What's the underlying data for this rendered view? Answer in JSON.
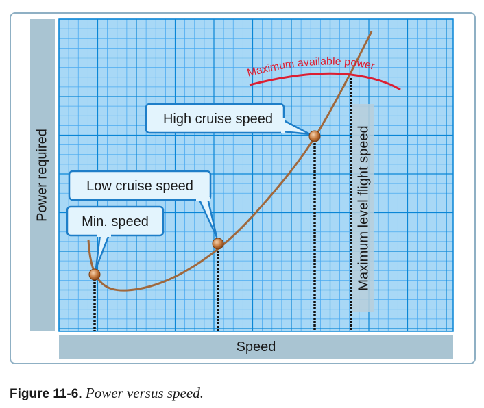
{
  "chart_data": {
    "type": "line",
    "xlabel": "Speed",
    "ylabel": "Power required",
    "grid": true,
    "series": [
      {
        "name": "",
        "points": []
      },
      {
        "name": "Maximum available power",
        "points": []
      }
    ],
    "annotations": [
      {
        "label": "Min. speed"
      },
      {
        "label": "Low cruise speed"
      },
      {
        "label": "High cruise speed"
      },
      {
        "label": "Maximum level flight speed"
      }
    ]
  },
  "colors": {
    "grid_background": "#a8d8f6",
    "grid_line": "#0a86d6",
    "power_required_curve": "#a0683c",
    "power_available_curve": "#dc1e32",
    "callout_fill": "#e3f4fd",
    "callout_border": "#1e7ec8",
    "label_bar": "#a9c4d2"
  },
  "caption": {
    "label": "Figure 11-6.",
    "text": "Power versus speed."
  }
}
